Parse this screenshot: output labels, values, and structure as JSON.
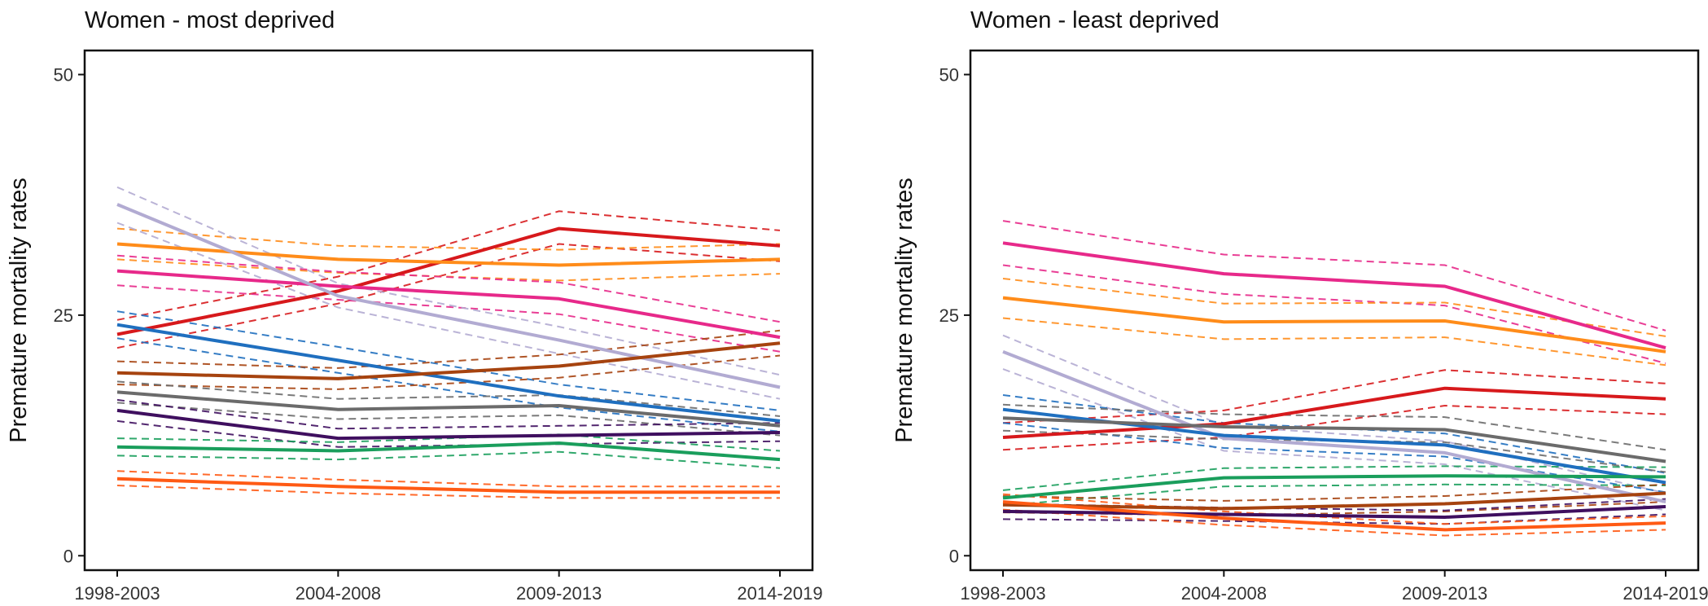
{
  "chart_data": [
    {
      "type": "line",
      "title": "Women - most deprived",
      "xlabel": "",
      "ylabel": "Premature mortality rates",
      "categories": [
        "1998-2003",
        "2004-2008",
        "2009-2013",
        "2014-2019"
      ],
      "yticks": [
        0,
        25,
        50
      ],
      "ylim": [
        -1.5,
        52.5
      ],
      "grid": false,
      "legend": "none",
      "series": [
        {
          "color": "#d7191c",
          "values": [
            23.0,
            27.5,
            34.0,
            32.2
          ],
          "lower": [
            21.6,
            26.2,
            32.4,
            30.6
          ],
          "upper": [
            24.5,
            29.0,
            35.8,
            33.8
          ]
        },
        {
          "color": "#ff8c1a",
          "values": [
            32.4,
            30.8,
            30.2,
            30.8
          ],
          "lower": [
            30.8,
            29.4,
            28.6,
            29.3
          ],
          "upper": [
            34.0,
            32.2,
            31.8,
            32.4
          ]
        },
        {
          "color": "#e7298a",
          "values": [
            29.6,
            28.0,
            26.7,
            22.7
          ],
          "lower": [
            28.1,
            26.6,
            25.1,
            21.2
          ],
          "upper": [
            31.2,
            29.5,
            28.4,
            24.3
          ]
        },
        {
          "color": "#b2abd2",
          "values": [
            36.5,
            27.0,
            22.4,
            17.5
          ],
          "lower": [
            34.6,
            25.8,
            21.0,
            16.3
          ],
          "upper": [
            38.3,
            28.3,
            23.8,
            18.8
          ]
        },
        {
          "color": "#1f6fbf",
          "values": [
            24.0,
            20.3,
            16.6,
            14.0
          ],
          "lower": [
            22.6,
            19.0,
            15.4,
            12.9
          ],
          "upper": [
            25.4,
            21.7,
            17.8,
            15.1
          ]
        },
        {
          "color": "#a6430f",
          "values": [
            19.0,
            18.4,
            19.7,
            22.1
          ],
          "lower": [
            17.8,
            17.3,
            18.5,
            20.8
          ],
          "upper": [
            20.2,
            19.5,
            20.9,
            23.4
          ]
        },
        {
          "color": "#6b6b6b",
          "values": [
            17.0,
            15.2,
            15.6,
            13.5
          ],
          "lower": [
            15.9,
            14.2,
            14.6,
            12.5
          ],
          "upper": [
            18.1,
            16.3,
            16.7,
            14.5
          ]
        },
        {
          "color": "#3f0f5f",
          "values": [
            15.1,
            12.2,
            12.5,
            12.8
          ],
          "lower": [
            14.0,
            11.3,
            11.6,
            11.9
          ],
          "upper": [
            16.2,
            13.2,
            13.5,
            13.8
          ]
        },
        {
          "color": "#1a9e5c",
          "values": [
            11.3,
            10.9,
            11.7,
            10.0
          ],
          "lower": [
            10.4,
            10.0,
            10.8,
            9.1
          ],
          "upper": [
            12.2,
            11.8,
            12.6,
            10.9
          ]
        },
        {
          "color": "#ff5a14",
          "values": [
            8.0,
            7.2,
            6.6,
            6.6
          ],
          "lower": [
            7.3,
            6.5,
            6.0,
            6.0
          ],
          "upper": [
            8.8,
            7.9,
            7.2,
            7.2
          ]
        }
      ]
    },
    {
      "type": "line",
      "title": "Women - least deprived",
      "xlabel": "",
      "ylabel": "Premature mortality rates",
      "categories": [
        "1998-2003",
        "2004-2008",
        "2009-2013",
        "2014-2019"
      ],
      "yticks": [
        0,
        25,
        50
      ],
      "ylim": [
        -1.5,
        52.5
      ],
      "grid": false,
      "legend": "none",
      "series": [
        {
          "color": "#e7298a",
          "values": [
            32.5,
            29.3,
            28.0,
            21.6
          ],
          "lower": [
            30.2,
            27.2,
            26.0,
            20.0
          ],
          "upper": [
            34.8,
            31.3,
            30.2,
            23.4
          ]
        },
        {
          "color": "#ff8c1a",
          "values": [
            26.8,
            24.3,
            24.4,
            21.2
          ],
          "lower": [
            24.7,
            22.5,
            22.7,
            19.8
          ],
          "upper": [
            28.8,
            26.2,
            26.3,
            22.8
          ]
        },
        {
          "color": "#b2abd2",
          "values": [
            21.2,
            12.2,
            10.7,
            5.6
          ],
          "lower": [
            19.4,
            10.9,
            9.5,
            4.7
          ],
          "upper": [
            22.9,
            13.5,
            11.9,
            6.5
          ]
        },
        {
          "color": "#d7191c",
          "values": [
            12.3,
            13.7,
            17.4,
            16.3
          ],
          "lower": [
            11.0,
            12.3,
            15.6,
            14.7
          ],
          "upper": [
            13.8,
            15.1,
            19.3,
            17.9
          ]
        },
        {
          "color": "#1f6fbf",
          "values": [
            15.2,
            12.5,
            11.5,
            7.6
          ],
          "lower": [
            13.8,
            11.2,
            10.3,
            6.6
          ],
          "upper": [
            16.7,
            13.8,
            12.7,
            8.6
          ]
        },
        {
          "color": "#6b6b6b",
          "values": [
            14.3,
            13.4,
            13.1,
            9.8
          ],
          "lower": [
            13.0,
            12.1,
            11.8,
            8.7
          ],
          "upper": [
            15.7,
            14.7,
            14.4,
            11.0
          ]
        },
        {
          "color": "#1a9e5c",
          "values": [
            6.0,
            8.1,
            8.3,
            8.2
          ],
          "lower": [
            5.2,
            7.2,
            7.4,
            7.3
          ],
          "upper": [
            6.8,
            9.1,
            9.3,
            9.2
          ]
        },
        {
          "color": "#a6430f",
          "values": [
            5.3,
            4.9,
            5.4,
            6.5
          ],
          "lower": [
            4.5,
            4.2,
            4.6,
            5.6
          ],
          "upper": [
            6.2,
            5.7,
            6.2,
            7.4
          ]
        },
        {
          "color": "#3f0f5f",
          "values": [
            4.6,
            4.3,
            4.0,
            5.1
          ],
          "lower": [
            3.8,
            3.6,
            3.3,
            4.3
          ],
          "upper": [
            5.4,
            5.0,
            4.7,
            5.9
          ]
        },
        {
          "color": "#ff5a14",
          "values": [
            5.6,
            3.9,
            2.7,
            3.4
          ],
          "lower": [
            4.8,
            3.2,
            2.1,
            2.7
          ],
          "upper": [
            6.4,
            4.6,
            3.3,
            4.1
          ]
        }
      ]
    }
  ]
}
